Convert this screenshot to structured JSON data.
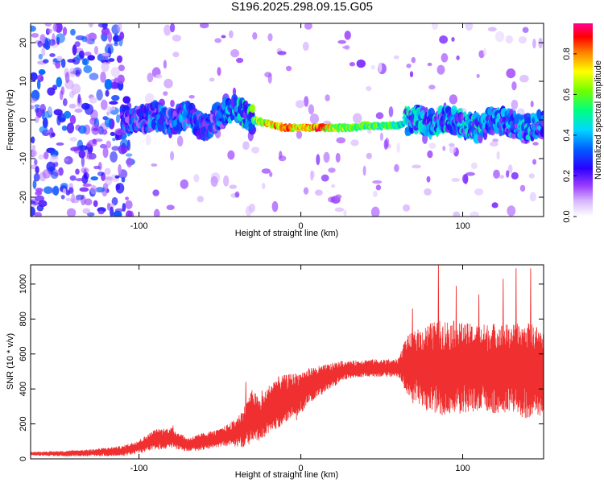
{
  "figure": {
    "title": "S196.2025.298.09.15.G05"
  },
  "chart_data": [
    {
      "type": "heatmap",
      "title": "S196.2025.298.09.15.G05",
      "xlabel": "Height of straight line (km)",
      "ylabel": "Frequency (Hz)",
      "xlim": [
        -167,
        150
      ],
      "ylim": [
        -25,
        25
      ],
      "xticks": [
        -100,
        0,
        100
      ],
      "xtick_labels": [
        "-100",
        "0",
        "100"
      ],
      "yticks": [
        -20,
        -10,
        0,
        10,
        20
      ],
      "ytick_labels": [
        "-20",
        "-10",
        "0",
        "10",
        "20"
      ],
      "colorbar": {
        "label": "Normalized spectral amplitude",
        "range": [
          0,
          0.95
        ],
        "ticks": [
          0,
          0.2,
          0.4,
          0.6,
          0.8
        ],
        "tick_labels": [
          "0.0",
          "0.2",
          "0.4",
          "0.6",
          "0.8"
        ],
        "colors": [
          "#ffffff",
          "#c8a2ff",
          "#7f00ff",
          "#0000ff",
          "#00c0ff",
          "#00ff80",
          "#80ff00",
          "#ffff00",
          "#ff8000",
          "#ff0000",
          "#ff00a0"
        ]
      },
      "ridge": {
        "x": [
          -100,
          -90,
          -80,
          -70,
          -60,
          -50,
          -40,
          -30,
          -20,
          -10,
          0,
          10,
          20,
          30,
          40,
          50,
          60,
          70,
          80,
          90,
          100,
          110,
          120,
          130,
          140,
          150
        ],
        "frequency": [
          0,
          1,
          -1,
          2,
          -2,
          1,
          3,
          0,
          -1,
          -2,
          -2,
          -2,
          -2,
          -2,
          -1.5,
          -1.5,
          -1.5,
          0,
          -1,
          0,
          -1,
          -2,
          0,
          -1,
          -2,
          -1
        ],
        "amplitude": [
          0.35,
          0.4,
          0.35,
          0.4,
          0.35,
          0.4,
          0.45,
          0.6,
          0.8,
          0.85,
          0.75,
          0.9,
          0.7,
          0.65,
          0.62,
          0.6,
          0.55,
          0.45,
          0.45,
          0.5,
          0.45,
          0.5,
          0.45,
          0.4,
          0.45,
          0.4
        ]
      }
    },
    {
      "type": "line",
      "xlabel": "Height of straight line (km)",
      "ylabel": "SNR (10 * v/v)",
      "xlim": [
        -167,
        150
      ],
      "ylim": [
        0,
        1110
      ],
      "xticks": [
        -100,
        0,
        100
      ],
      "xtick_labels": [
        "-100",
        "0",
        "100"
      ],
      "yticks": [
        0,
        200,
        400,
        600,
        800,
        1000
      ],
      "ytick_labels": [
        "0",
        "200",
        "400",
        "600",
        "800",
        "1000"
      ],
      "series": [
        {
          "name": "SNR",
          "color": "#f03030",
          "x": [
            -167,
            -150,
            -130,
            -110,
            -100,
            -90,
            -80,
            -70,
            -60,
            -50,
            -40,
            -35,
            -30,
            -25,
            -20,
            -15,
            -10,
            -5,
            0,
            5,
            10,
            15,
            20,
            25,
            30,
            40,
            50,
            60,
            65,
            70,
            80,
            90,
            100,
            110,
            120,
            130,
            140,
            150
          ],
          "y": [
            30,
            30,
            35,
            45,
            70,
            110,
            120,
            80,
            100,
            120,
            150,
            180,
            250,
            220,
            280,
            320,
            340,
            360,
            380,
            420,
            440,
            460,
            480,
            500,
            510,
            520,
            520,
            520,
            540,
            530,
            520,
            520,
            520,
            520,
            520,
            520,
            500,
            500
          ],
          "spread": [
            10,
            15,
            20,
            30,
            40,
            60,
            60,
            40,
            50,
            50,
            80,
            120,
            150,
            120,
            140,
            150,
            140,
            130,
            120,
            100,
            90,
            80,
            70,
            60,
            50,
            50,
            50,
            50,
            160,
            200,
            260,
            280,
            260,
            250,
            260,
            250,
            280,
            250
          ],
          "peaks": [
            [
              -79,
              190
            ],
            [
              -47,
              160
            ],
            [
              -34,
              440
            ],
            [
              -24,
              390
            ],
            [
              -16,
              440
            ],
            [
              -3,
              470
            ],
            [
              69,
              860
            ],
            [
              85,
              1110
            ],
            [
              96,
              990
            ],
            [
              110,
              940
            ],
            [
              125,
              1030
            ],
            [
              133,
              1090
            ],
            [
              142,
              1090
            ]
          ]
        }
      ]
    }
  ]
}
